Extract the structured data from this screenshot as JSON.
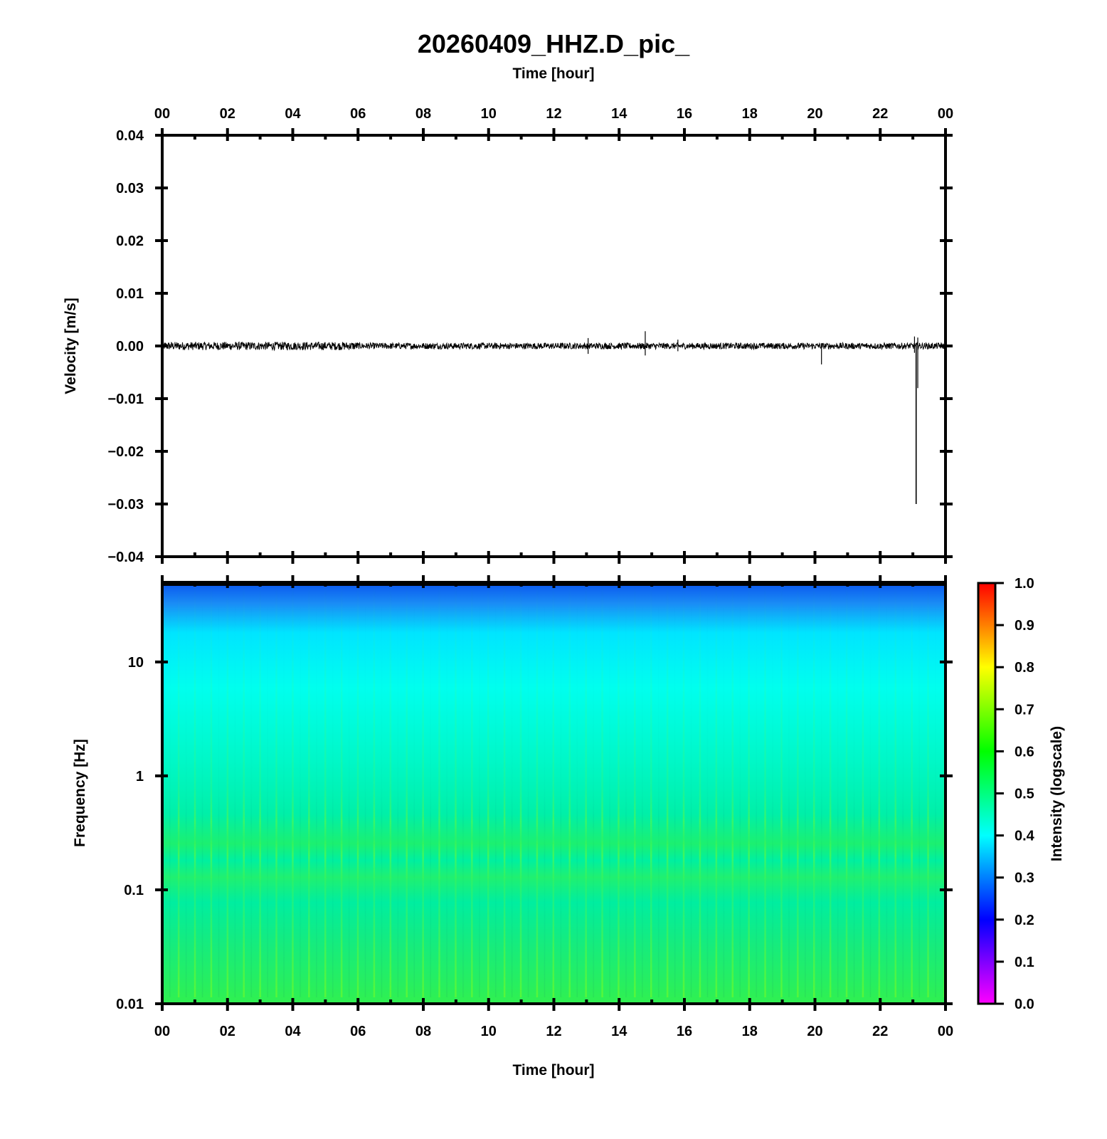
{
  "chart_data": [
    {
      "type": "line",
      "title": "20260409_HHZ.D_pic_",
      "xlabel": "Time [hour]",
      "ylabel": "Velocity [m/s]",
      "xlim": [
        0,
        24
      ],
      "ylim": [
        -0.04,
        0.04
      ],
      "x_tick_labels": [
        "00",
        "02",
        "04",
        "06",
        "08",
        "10",
        "12",
        "14",
        "16",
        "18",
        "20",
        "22",
        "00"
      ],
      "y_tick_values": [
        0.04,
        0.03,
        0.02,
        0.01,
        0.0,
        -0.01,
        -0.02,
        -0.03,
        -0.04
      ],
      "y_tick_labels": [
        "0.04",
        "0.03",
        "0.02",
        "0.01",
        "0.00",
        "−0.01",
        "−0.02",
        "−0.03",
        "−0.04"
      ],
      "series": [
        {
          "color": "#000000",
          "baseline": 0.0,
          "noise_amplitude": 0.0006,
          "events": [
            {
              "x": 13.05,
              "y_min": -0.0015,
              "y_max": 0.0015
            },
            {
              "x": 14.8,
              "y_min": -0.0018,
              "y_max": 0.0028
            },
            {
              "x": 15.8,
              "y_min": -0.001,
              "y_max": 0.0012
            },
            {
              "x": 20.2,
              "y_min": -0.0035,
              "y_max": 0.0005
            },
            {
              "x": 23.05,
              "y_min": -0.0013,
              "y_max": 0.0018
            },
            {
              "x": 23.1,
              "y_min": -0.03,
              "y_max": 0.0002
            },
            {
              "x": 23.15,
              "y_min": -0.008,
              "y_max": 0.0016
            }
          ]
        }
      ]
    },
    {
      "type": "heatmap",
      "xlabel": "Time [hour]",
      "ylabel": "Frequency [Hz]",
      "xlim": [
        0,
        24
      ],
      "ylim": [
        0.01,
        50
      ],
      "y_scale": "log",
      "x_tick_labels": [
        "00",
        "02",
        "04",
        "06",
        "08",
        "10",
        "12",
        "14",
        "16",
        "18",
        "20",
        "22",
        "00"
      ],
      "y_tick_values": [
        10,
        1,
        0.1,
        0.01
      ],
      "y_tick_labels": [
        "10",
        "1",
        "0.1",
        "0.01"
      ],
      "colorbar": {
        "label": "Intensity (logscale)",
        "range": [
          0.0,
          1.0
        ],
        "tick_labels": [
          "1.0",
          "0.9",
          "0.8",
          "0.7",
          "0.6",
          "0.5",
          "0.4",
          "0.3",
          "0.2",
          "0.1",
          "0.0"
        ],
        "colormap": [
          "#ff00ff",
          "#0000ff",
          "#00ffff",
          "#00ff00",
          "#ffff00",
          "#ff0000"
        ]
      },
      "intensity_profile": [
        {
          "freq": 50,
          "value": 0.3
        },
        {
          "freq": 25,
          "value": 0.34
        },
        {
          "freq": 10,
          "value": 0.4
        },
        {
          "freq": 3,
          "value": 0.43
        },
        {
          "freq": 1,
          "value": 0.45
        },
        {
          "freq": 0.5,
          "value": 0.5
        },
        {
          "freq": 0.2,
          "value": 0.52
        },
        {
          "freq": 0.1,
          "value": 0.49
        },
        {
          "freq": 0.03,
          "value": 0.53
        },
        {
          "freq": 0.01,
          "value": 0.58
        }
      ]
    }
  ]
}
